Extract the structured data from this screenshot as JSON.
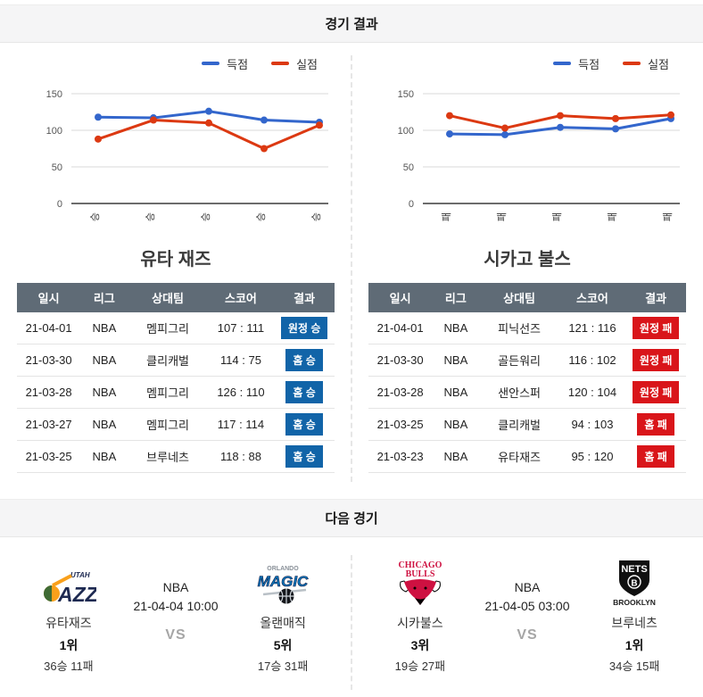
{
  "headers": {
    "results": "경기 결과",
    "next": "다음 경기"
  },
  "legend": {
    "points": "득점",
    "conceded": "실점"
  },
  "colors": {
    "points_line": "#3366cc",
    "conceded_line": "#dc3912",
    "win_badge": "#1164a8",
    "loss_badge": "#d9151a",
    "table_header_bg": "#5f6b76",
    "vs_text": "#a6a6a6"
  },
  "table_columns": [
    "일시",
    "리그",
    "상대팀",
    "스코어",
    "결과"
  ],
  "sections": [
    {
      "team_title": "유타 재즈",
      "games": [
        {
          "date": "21-04-01",
          "league": "NBA",
          "opponent": "멤피그리",
          "score": "107 : 111",
          "result": "원정 승",
          "outcome": "win"
        },
        {
          "date": "21-03-30",
          "league": "NBA",
          "opponent": "클리캐벌",
          "score": "114 : 75",
          "result": "홈 승",
          "outcome": "win"
        },
        {
          "date": "21-03-28",
          "league": "NBA",
          "opponent": "멤피그리",
          "score": "126 : 110",
          "result": "홈 승",
          "outcome": "win"
        },
        {
          "date": "21-03-27",
          "league": "NBA",
          "opponent": "멤피그리",
          "score": "117 : 114",
          "result": "홈 승",
          "outcome": "win"
        },
        {
          "date": "21-03-25",
          "league": "NBA",
          "opponent": "브루네츠",
          "score": "118 : 88",
          "result": "홈 승",
          "outcome": "win"
        }
      ]
    },
    {
      "team_title": "시카고 불스",
      "games": [
        {
          "date": "21-04-01",
          "league": "NBA",
          "opponent": "피닉선즈",
          "score": "121 : 116",
          "result": "원정 패",
          "outcome": "loss"
        },
        {
          "date": "21-03-30",
          "league": "NBA",
          "opponent": "골든워리",
          "score": "116 : 102",
          "result": "원정 패",
          "outcome": "loss"
        },
        {
          "date": "21-03-28",
          "league": "NBA",
          "opponent": "샌안스퍼",
          "score": "120 : 104",
          "result": "원정 패",
          "outcome": "loss"
        },
        {
          "date": "21-03-25",
          "league": "NBA",
          "opponent": "클리캐벌",
          "score": "94 : 103",
          "result": "홈 패",
          "outcome": "loss"
        },
        {
          "date": "21-03-23",
          "league": "NBA",
          "opponent": "유타재즈",
          "score": "95 : 120",
          "result": "홈 패",
          "outcome": "loss"
        }
      ]
    }
  ],
  "chart_data": [
    {
      "type": "line",
      "team": "유타 재즈",
      "categories": [
        "승",
        "승",
        "승",
        "승",
        "승"
      ],
      "series": [
        {
          "name": "득점",
          "color": "#3366cc",
          "values": [
            118,
            117,
            126,
            114,
            111
          ]
        },
        {
          "name": "실점",
          "color": "#dc3912",
          "values": [
            88,
            114,
            110,
            75,
            107
          ]
        }
      ],
      "y_ticks": [
        0,
        50,
        100,
        150
      ],
      "ylim": [
        0,
        160
      ],
      "grid": true,
      "legend_position": "top-right"
    },
    {
      "type": "line",
      "team": "시카고 불스",
      "categories": [
        "패",
        "패",
        "패",
        "패",
        "패"
      ],
      "series": [
        {
          "name": "득점",
          "color": "#3366cc",
          "values": [
            95,
            94,
            104,
            102,
            116
          ]
        },
        {
          "name": "실점",
          "color": "#dc3912",
          "values": [
            120,
            103,
            120,
            116,
            121
          ]
        }
      ],
      "y_ticks": [
        0,
        50,
        100,
        150
      ],
      "ylim": [
        0,
        160
      ],
      "grid": true,
      "legend_position": "top-right"
    }
  ],
  "next_games": [
    {
      "league": "NBA",
      "datetime": "21-04-04 10:00",
      "vs": "VS",
      "home": {
        "name": "유타재즈",
        "rank": "1위",
        "record": "36승 11패",
        "logo": "utah-jazz-logo"
      },
      "away": {
        "name": "올랜매직",
        "rank": "5위",
        "record": "17승 31패",
        "logo": "orlando-magic-logo"
      }
    },
    {
      "league": "NBA",
      "datetime": "21-04-05 03:00",
      "vs": "VS",
      "home": {
        "name": "시카불스",
        "rank": "3위",
        "record": "19승 27패",
        "logo": "chicago-bulls-logo"
      },
      "away": {
        "name": "브루네츠",
        "rank": "1위",
        "record": "34승 15패",
        "logo": "brooklyn-nets-logo"
      }
    }
  ]
}
